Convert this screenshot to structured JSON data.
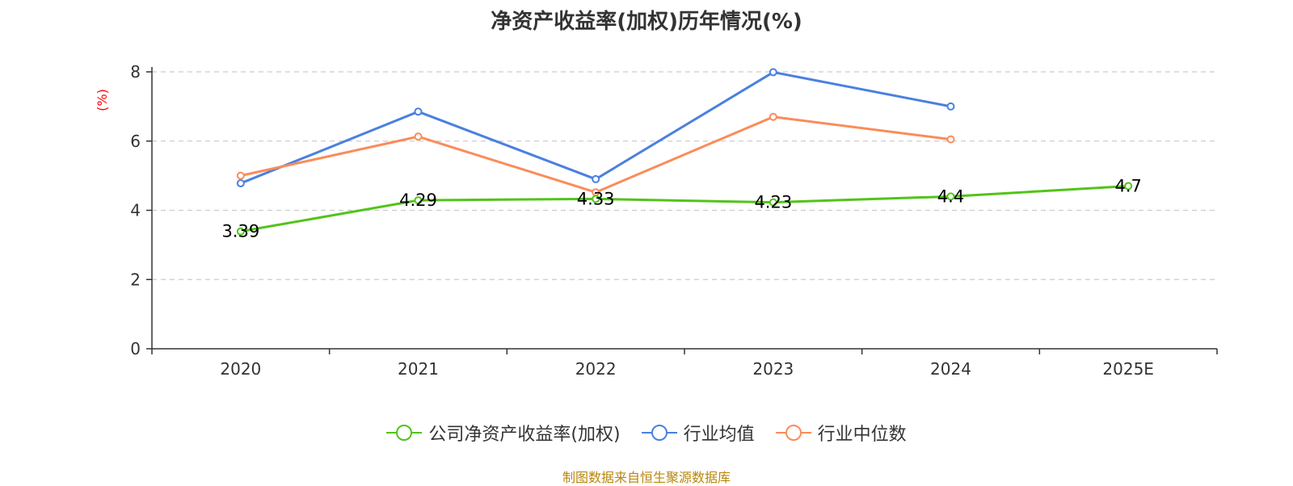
{
  "colors": {
    "company": "#52c41a",
    "avg": "#4a80e0",
    "median": "#fa8c5a",
    "ylabel": "#ff0000",
    "source": "#b8860b",
    "grid": "#cccccc",
    "axis": "#333333"
  },
  "chart_data": {
    "type": "line",
    "title": "净资产收益率(加权)历年情况(%)",
    "ylabel": "(%)",
    "xlabel": "",
    "categories": [
      "2020",
      "2021",
      "2022",
      "2023",
      "2024",
      "2025E"
    ],
    "ylim": [
      0,
      8
    ],
    "yticks": [
      0,
      2,
      4,
      6,
      8
    ],
    "grid": true,
    "legend_position": "bottom",
    "series": [
      {
        "name": "公司净资产收益率(加权)",
        "key": "company",
        "values": [
          3.39,
          4.29,
          4.33,
          4.23,
          4.4,
          4.7
        ],
        "labels": [
          "3.39",
          "4.29",
          "4.33",
          "4.23",
          "4.4",
          "4.7"
        ]
      },
      {
        "name": "行业均值",
        "key": "avg",
        "values": [
          4.78,
          6.85,
          4.9,
          7.99,
          7.0,
          null
        ]
      },
      {
        "name": "行业中位数",
        "key": "median",
        "values": [
          5.0,
          6.13,
          4.52,
          6.7,
          6.05,
          null
        ]
      }
    ]
  },
  "source_text": "制图数据来自恒生聚源数据库"
}
